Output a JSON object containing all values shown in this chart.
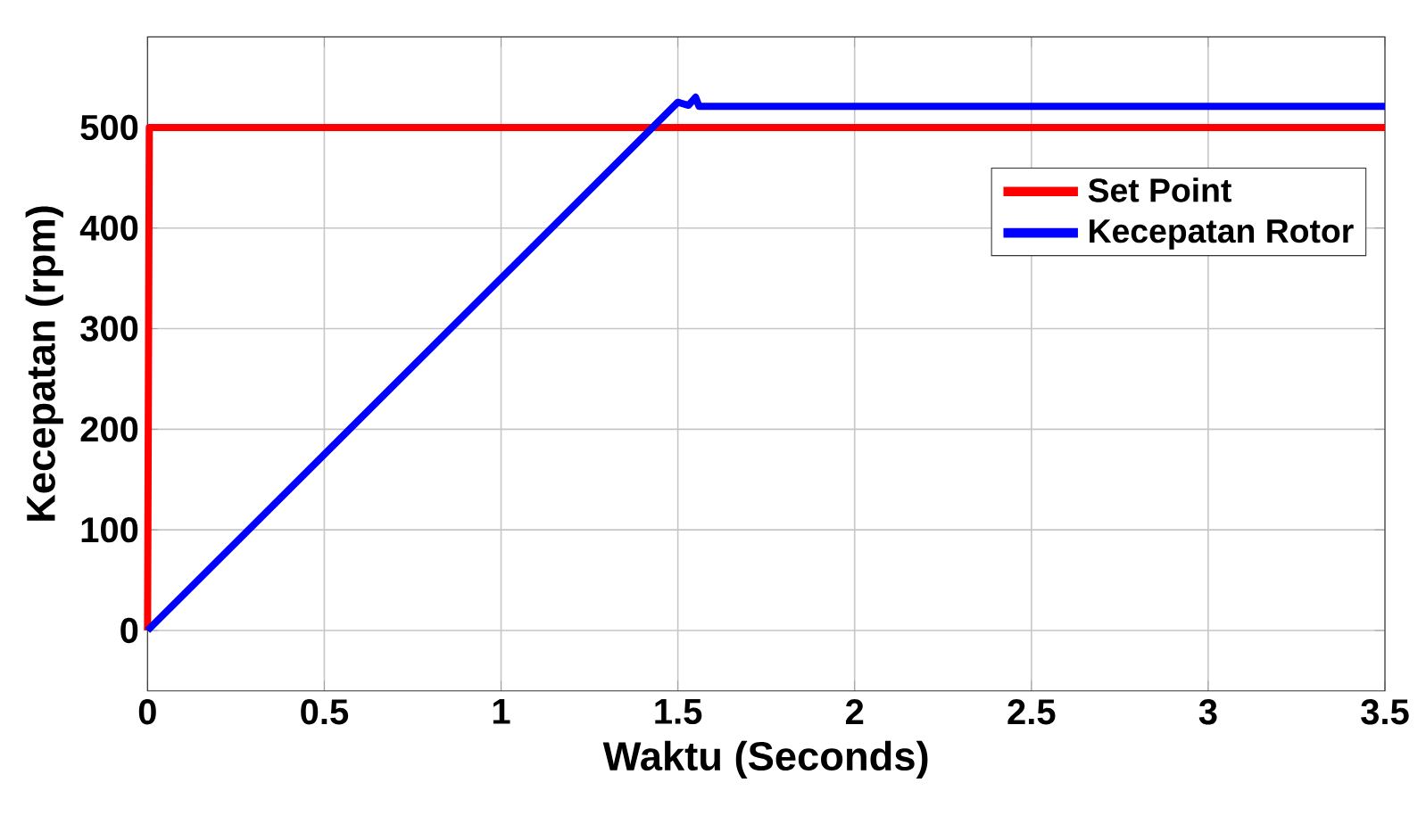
{
  "chart_data": {
    "type": "line",
    "xlabel": "Waktu (Seconds)",
    "ylabel": "Kecepatan (rpm)",
    "xlim": [
      0,
      3.5
    ],
    "ylim": [
      -60,
      590
    ],
    "xticks": [
      0,
      0.5,
      1,
      1.5,
      2,
      2.5,
      3,
      3.5
    ],
    "yticks": [
      0,
      100,
      200,
      300,
      400,
      500
    ],
    "grid": true,
    "legend": "top right",
    "line_style": "solid",
    "series": [
      {
        "name": "Set Point",
        "color": "#ff0000",
        "x": [
          0,
          0.005,
          3.5
        ],
        "values": [
          0,
          500,
          500
        ]
      },
      {
        "name": "Kecepatan Rotor",
        "color": "#0000ff",
        "x": [
          0,
          1.5,
          1.53,
          1.55,
          1.56,
          3.5
        ],
        "values": [
          0,
          525,
          522,
          530,
          521,
          521
        ]
      }
    ]
  }
}
